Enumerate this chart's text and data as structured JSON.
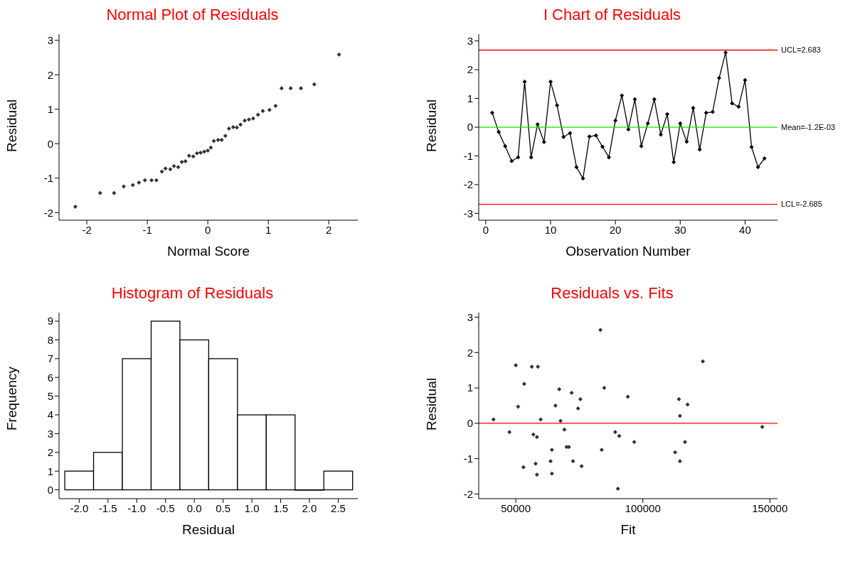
{
  "chart_data": [
    {
      "type": "scatter",
      "title": "Normal Plot of Residuals",
      "xlabel": "Normal Score",
      "ylabel": "Residual",
      "marker": "diamond",
      "color": "#333333",
      "x": [
        -2.19,
        -1.78,
        -1.55,
        -1.39,
        -1.24,
        -1.14,
        -1.04,
        -0.93,
        -0.85,
        -0.76,
        -0.7,
        -0.62,
        -0.56,
        -0.49,
        -0.43,
        -0.37,
        -0.31,
        -0.24,
        -0.18,
        -0.12,
        -0.06,
        0.0,
        0.05,
        0.1,
        0.17,
        0.23,
        0.29,
        0.35,
        0.42,
        0.48,
        0.54,
        0.61,
        0.68,
        0.75,
        0.83,
        0.91,
        1.02,
        1.12,
        1.22,
        1.37,
        1.54,
        1.76,
        2.17
      ],
      "values": [
        -1.83,
        -1.43,
        -1.43,
        -1.24,
        -1.2,
        -1.13,
        -1.06,
        -1.06,
        -1.06,
        -0.81,
        -0.72,
        -0.74,
        -0.65,
        -0.68,
        -0.53,
        -0.51,
        -0.35,
        -0.37,
        -0.28,
        -0.26,
        -0.23,
        -0.2,
        -0.11,
        0.08,
        0.11,
        0.11,
        0.23,
        0.44,
        0.48,
        0.47,
        0.55,
        0.67,
        0.7,
        0.73,
        0.84,
        0.95,
        0.98,
        1.1,
        1.61,
        1.61,
        1.61,
        1.72,
        2.59
      ],
      "xlim": [
        -2.46,
        2.48
      ],
      "xticks": [
        -2,
        -1,
        0,
        1,
        2
      ],
      "ylim": [
        -2.22,
        3.18
      ],
      "yticks": [
        -2,
        -1,
        0,
        1,
        2,
        3
      ]
    },
    {
      "type": "line",
      "title": "I Chart of Residuals",
      "xlabel": "Observation Number",
      "ylabel": "Residual",
      "marker": "diamond",
      "color": "#000000",
      "x": [
        1,
        2,
        3,
        4,
        5,
        6,
        7,
        8,
        9,
        10,
        11,
        12,
        13,
        14,
        15,
        16,
        17,
        18,
        19,
        20,
        21,
        22,
        23,
        24,
        25,
        26,
        27,
        28,
        29,
        30,
        31,
        32,
        33,
        34,
        35,
        36,
        37,
        38,
        39,
        40,
        41,
        42,
        43
      ],
      "values": [
        0.5,
        -0.17,
        -0.66,
        -1.18,
        -1.05,
        1.58,
        -1.05,
        0.1,
        -0.52,
        1.58,
        0.76,
        -0.34,
        -0.21,
        -1.39,
        -1.79,
        -0.33,
        -0.29,
        -0.68,
        -1.05,
        0.23,
        1.1,
        -0.08,
        0.97,
        -0.66,
        0.13,
        0.97,
        -0.26,
        0.45,
        -1.22,
        0.13,
        -0.51,
        0.67,
        -0.78,
        0.5,
        0.53,
        1.71,
        2.6,
        0.83,
        0.71,
        1.64,
        -0.69,
        -1.39,
        -1.09
      ],
      "xlim": [
        -1.08,
        45
      ],
      "xticks": [
        0,
        10,
        20,
        30,
        40
      ],
      "ylim": [
        -3.24,
        3.24
      ],
      "yticks": [
        -3,
        -2,
        -1,
        0,
        1,
        2,
        3
      ],
      "ref_lines": [
        {
          "axis": "y",
          "value": 2.683,
          "label": "UCL=2.683",
          "color": "#ff0000"
        },
        {
          "axis": "y",
          "value": -0.0012,
          "label": "Mean=-1.2E-03",
          "color": "#00ee00"
        },
        {
          "axis": "y",
          "value": -2.685,
          "label": "LCL=-2.685",
          "color": "#ff0000"
        }
      ]
    },
    {
      "type": "histogram",
      "title": "Histogram of Residuals",
      "xlabel": "Residual",
      "ylabel": "Frequency",
      "color": "#ffffff",
      "bins": [
        -2.25,
        -1.75,
        -1.25,
        -0.75,
        -0.25,
        0.25,
        0.75,
        1.25,
        1.75,
        2.25,
        2.75
      ],
      "values": [
        1,
        2,
        7,
        9,
        8,
        7,
        4,
        4,
        0,
        1
      ],
      "xlim": [
        -2.35,
        2.84
      ],
      "xticks": [
        {
          "value": -2,
          "label": "-2.0"
        },
        {
          "value": -1.5,
          "label": "-1.5"
        },
        {
          "value": -1,
          "label": "-1.0"
        },
        {
          "value": -0.5,
          "label": "-0.5"
        },
        {
          "value": 0,
          "label": "0.0"
        },
        {
          "value": 0.5,
          "label": "0.5"
        },
        {
          "value": 1,
          "label": "1.0"
        },
        {
          "value": 1.5,
          "label": "1.5"
        },
        {
          "value": 2,
          "label": "2.0"
        },
        {
          "value": 2.5,
          "label": "2.5"
        }
      ],
      "ylim": [
        -0.47,
        9.46
      ],
      "yticks": [
        0,
        1,
        2,
        3,
        4,
        5,
        6,
        7,
        8,
        9
      ]
    },
    {
      "type": "scatter",
      "title": "Residuals vs. Fits",
      "xlabel": "Fit",
      "ylabel": "Residual",
      "marker": "diamond",
      "color": "#333333",
      "x": [
        41200,
        47500,
        50000,
        50900,
        53000,
        53300,
        56300,
        56900,
        57800,
        58300,
        58300,
        58700,
        59800,
        63700,
        64200,
        64200,
        65600,
        67100,
        67600,
        69100,
        70000,
        70900,
        72000,
        72500,
        74500,
        75400,
        75900,
        83300,
        83800,
        84800,
        89100,
        90200,
        90700,
        94100,
        96600,
        112700,
        114200,
        114600,
        114600,
        116600,
        117600,
        123600,
        147000
      ],
      "values": [
        0.11,
        -0.25,
        1.64,
        0.47,
        -1.24,
        1.11,
        1.6,
        -0.32,
        -1.14,
        -0.39,
        -1.45,
        1.6,
        0.11,
        -1.07,
        -0.75,
        -1.42,
        0.5,
        0.96,
        0.07,
        -0.18,
        -0.67,
        -0.67,
        0.86,
        -1.07,
        0.42,
        0.68,
        -1.21,
        2.64,
        -0.75,
        1.0,
        -0.25,
        -1.85,
        -0.36,
        0.75,
        -0.53,
        -0.82,
        0.68,
        0.21,
        -1.07,
        -0.53,
        0.53,
        1.75,
        -0.1
      ],
      "xlim": [
        35400,
        153000
      ],
      "xticks": [
        50000,
        100000,
        150000
      ],
      "ylim": [
        -2.13,
        3.13
      ],
      "yticks": [
        -2,
        -1,
        0,
        1,
        2,
        3
      ],
      "ref_lines": [
        {
          "axis": "y",
          "value": 0,
          "color": "#ff0000"
        }
      ]
    }
  ]
}
